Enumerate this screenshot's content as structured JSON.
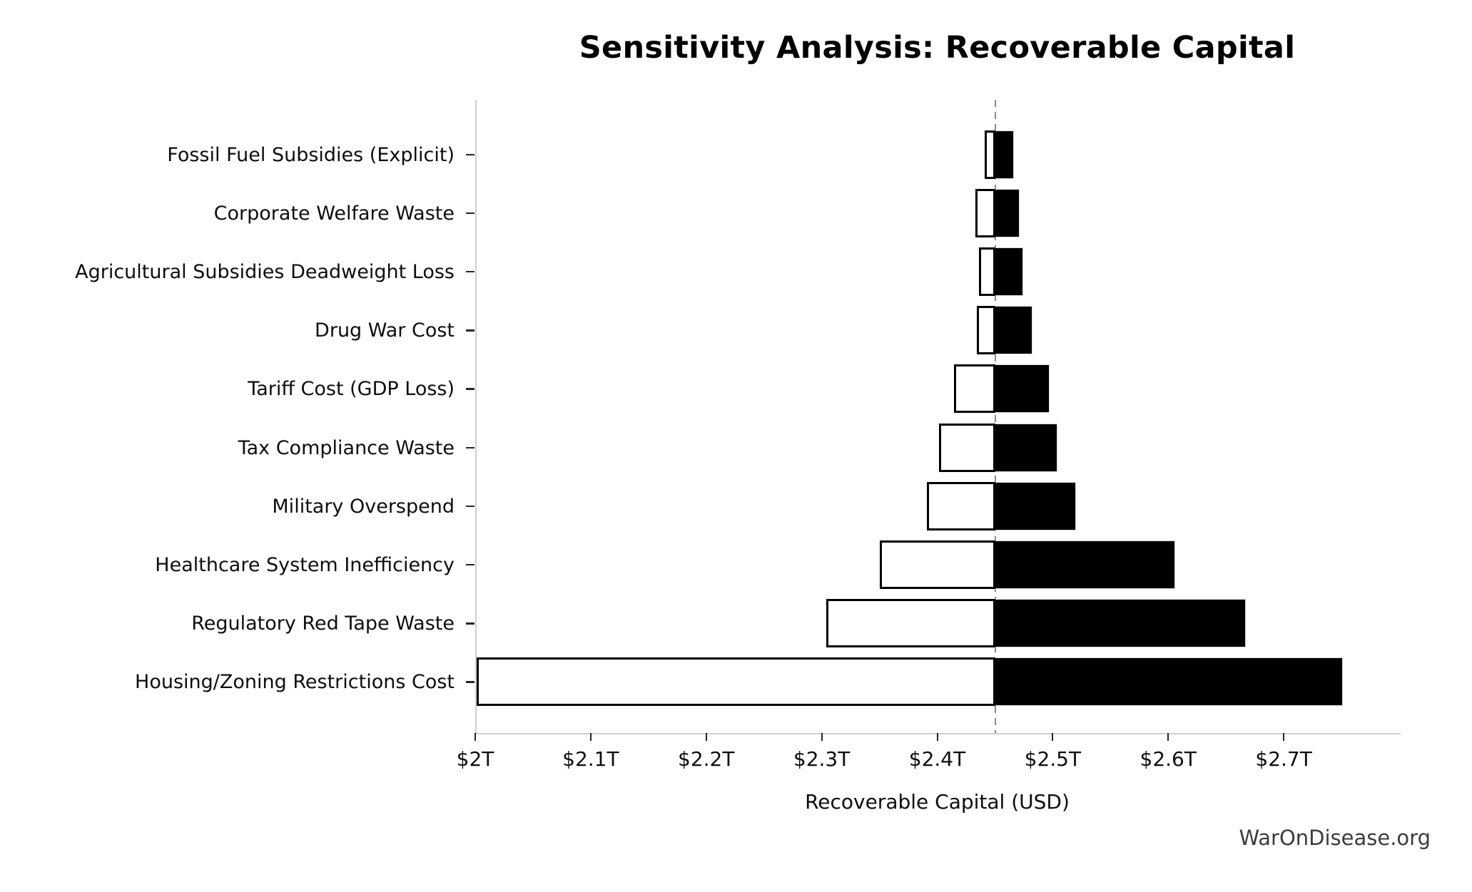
{
  "watermark": "WarOnDisease.org",
  "colors": {
    "background": "#ffffff",
    "bar_low_fill": "#ffffff",
    "bar_low_edge": "#000000",
    "bar_high_fill": "#000000",
    "bar_high_edge": "#d9d9d9",
    "baseline_line": "#8a8a8a",
    "axis_spine": "#cfcfcf",
    "text": "#000000",
    "watermark_text": "#3c3c3c"
  },
  "chart_data": {
    "type": "bar",
    "variant": "tornado-horizontal",
    "title": "Sensitivity Analysis: Recoverable Capital",
    "xlabel": "Recoverable Capital (USD)",
    "unit": "trillion USD",
    "grid": false,
    "legend": "none",
    "baseline_value": 2.449,
    "baseline_line_style": "vertical gray dashed",
    "xlim": [
      2.0,
      2.8
    ],
    "x_tick_values": [
      2.0,
      2.1,
      2.2,
      2.3,
      2.4,
      2.5,
      2.6,
      2.7
    ],
    "x_tick_labels": [
      "$2T",
      "$2.1T",
      "$2.2T",
      "$2.3T",
      "$2.4T",
      "$2.5T",
      "$2.6T",
      "$2.7T"
    ],
    "categories": [
      "Fossil Fuel Subsidies (Explicit)",
      "Corporate Welfare Waste",
      "Agricultural Subsidies Deadweight Loss",
      "Drug War Cost",
      "Tariff Cost (GDP Loss)",
      "Tax Compliance Waste",
      "Military Overspend",
      "Healthcare System Inefficiency",
      "Regulatory Red Tape Waste",
      "Housing/Zoning Restrictions Cost"
    ],
    "series": [
      {
        "name": "Low estimate (white, left of baseline)",
        "fill": "#ffffff",
        "edge": "#000000",
        "values": [
          2.44,
          2.432,
          2.435,
          2.433,
          2.413,
          2.4,
          2.39,
          2.349,
          2.303,
          2.0
        ]
      },
      {
        "name": "High estimate (black, right of baseline)",
        "fill": "#000000",
        "edge": "#d9d9d9",
        "values": [
          2.465,
          2.47,
          2.473,
          2.481,
          2.496,
          2.503,
          2.519,
          2.605,
          2.666,
          2.75
        ]
      }
    ]
  }
}
